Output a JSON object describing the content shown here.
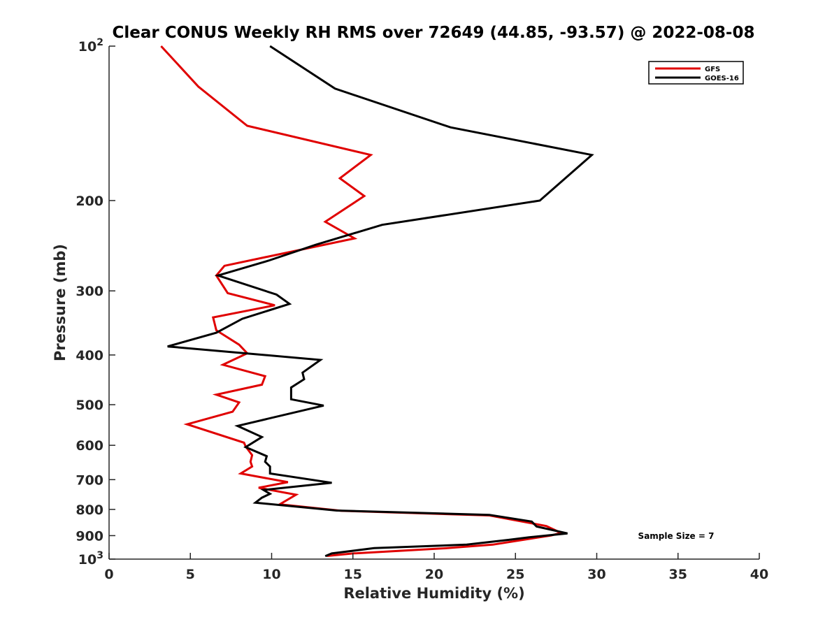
{
  "chart_data": {
    "type": "line",
    "title": "Clear CONUS Weekly RH RMS over 72649 (44.85, -93.57) @ 2022-08-08",
    "xlabel": "Relative Humidity (%)",
    "ylabel": "Pressure (mb)",
    "xlim": [
      0,
      40
    ],
    "ylim": [
      100,
      1000
    ],
    "y_scale": "log",
    "y_reversed": true,
    "x_ticks": [
      "0",
      "5",
      "10",
      "15",
      "20",
      "25",
      "30",
      "35",
      "40"
    ],
    "y_ticks": [
      {
        "value": 100,
        "base": "10",
        "exp": "2"
      },
      {
        "value": 200,
        "label": "200"
      },
      {
        "value": 300,
        "label": "300"
      },
      {
        "value": 400,
        "label": "400"
      },
      {
        "value": 500,
        "label": "500"
      },
      {
        "value": 600,
        "label": "600"
      },
      {
        "value": 700,
        "label": "700"
      },
      {
        "value": 800,
        "label": "800"
      },
      {
        "value": 900,
        "label": "900"
      },
      {
        "value": 1000,
        "base": "10",
        "exp": "3"
      }
    ],
    "legend_position": "top-right",
    "annotation": "Sample Size = 7",
    "series": [
      {
        "name": "GFS",
        "color": "#e00000",
        "points": [
          [
            3.2,
            100
          ],
          [
            5.5,
            120
          ],
          [
            8.5,
            143
          ],
          [
            16.1,
            163
          ],
          [
            14.2,
            181
          ],
          [
            15.7,
            196
          ],
          [
            13.3,
            220
          ],
          [
            15.1,
            237
          ],
          [
            7.1,
            268
          ],
          [
            6.6,
            280
          ],
          [
            7.3,
            303
          ],
          [
            10.2,
            320
          ],
          [
            6.4,
            338
          ],
          [
            6.6,
            358
          ],
          [
            8.0,
            382
          ],
          [
            8.5,
            397
          ],
          [
            7.0,
            418
          ],
          [
            9.6,
            440
          ],
          [
            9.4,
            457
          ],
          [
            6.6,
            478
          ],
          [
            8.0,
            495
          ],
          [
            7.6,
            516
          ],
          [
            4.8,
            546
          ],
          [
            8.3,
            593
          ],
          [
            8.4,
            603
          ],
          [
            8.8,
            627
          ],
          [
            8.7,
            646
          ],
          [
            8.8,
            660
          ],
          [
            8.1,
            681
          ],
          [
            11.0,
            708
          ],
          [
            9.2,
            726
          ],
          [
            11.5,
            749
          ],
          [
            10.5,
            782
          ],
          [
            14.3,
            805
          ],
          [
            23.4,
            822
          ],
          [
            26.9,
            862
          ],
          [
            27.8,
            889
          ],
          [
            27.2,
            899
          ],
          [
            25.0,
            922
          ],
          [
            23.6,
            937
          ],
          [
            20.8,
            952
          ],
          [
            18.0,
            963
          ],
          [
            15.0,
            975
          ],
          [
            13.4,
            986
          ]
        ]
      },
      {
        "name": "GOES-16",
        "color": "#000000",
        "points": [
          [
            9.9,
            100
          ],
          [
            13.9,
            121
          ],
          [
            21.0,
            144
          ],
          [
            29.7,
            163
          ],
          [
            26.5,
            200
          ],
          [
            16.8,
            223
          ],
          [
            12.7,
            244
          ],
          [
            9.8,
            262
          ],
          [
            6.7,
            280
          ],
          [
            10.3,
            305
          ],
          [
            11.1,
            318
          ],
          [
            8.2,
            340
          ],
          [
            6.6,
            362
          ],
          [
            3.6,
            385
          ],
          [
            13.0,
            409
          ],
          [
            11.9,
            433
          ],
          [
            12.0,
            446
          ],
          [
            11.2,
            463
          ],
          [
            11.2,
            488
          ],
          [
            13.2,
            502
          ],
          [
            7.9,
            550
          ],
          [
            9.4,
            578
          ],
          [
            8.4,
            605
          ],
          [
            9.7,
            630
          ],
          [
            9.6,
            646
          ],
          [
            9.9,
            660
          ],
          [
            9.9,
            681
          ],
          [
            13.7,
            710
          ],
          [
            9.5,
            733
          ],
          [
            9.9,
            746
          ],
          [
            9.4,
            759
          ],
          [
            9.0,
            776
          ],
          [
            14.0,
            804
          ],
          [
            23.4,
            820
          ],
          [
            26.0,
            845
          ],
          [
            26.3,
            864
          ],
          [
            28.2,
            891
          ],
          [
            25.8,
            907
          ],
          [
            24.6,
            917
          ],
          [
            22.0,
            937
          ],
          [
            16.3,
            952
          ],
          [
            13.7,
            975
          ],
          [
            13.3,
            987
          ]
        ]
      }
    ]
  }
}
